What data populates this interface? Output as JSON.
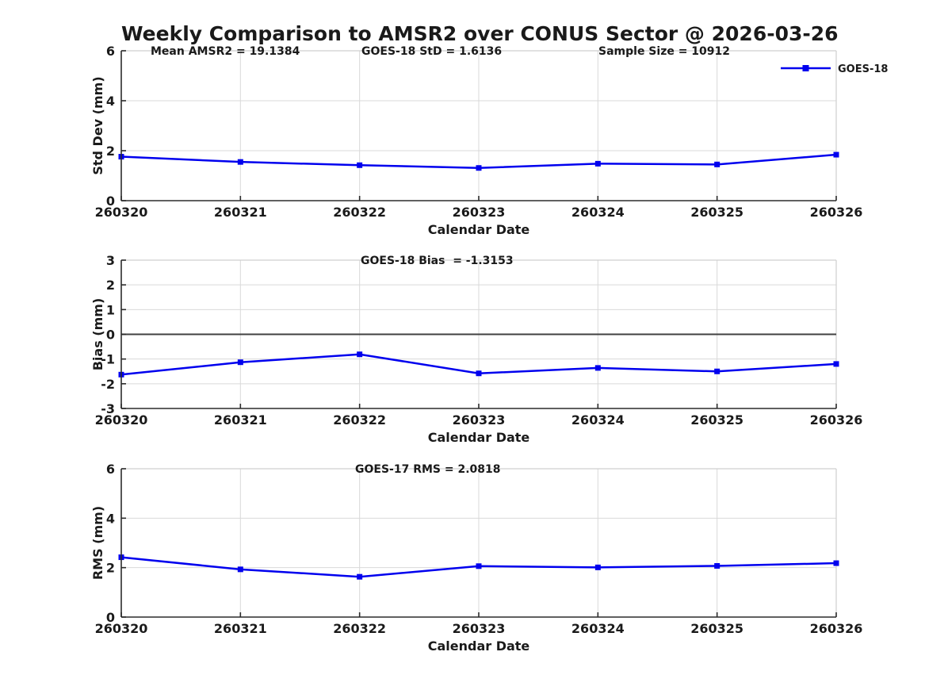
{
  "title": "Weekly Comparison to AMSR2 over CONUS Sector @ 2026-03-26",
  "colors": {
    "series": "#0000EE",
    "grid": "#d9d9d9",
    "box_light": "#cfcfcf",
    "axis": "#2b2b2b",
    "text": "#1a1a1a",
    "zero_line": "#404040",
    "background": "#ffffff"
  },
  "chart_data": [
    {
      "type": "line",
      "panel": "std-dev",
      "categories": [
        "260320",
        "260321",
        "260322",
        "260323",
        "260324",
        "260325",
        "260326"
      ],
      "series": [
        {
          "name": "GOES-18",
          "values": [
            1.76,
            1.55,
            1.42,
            1.31,
            1.48,
            1.45,
            1.84
          ]
        }
      ],
      "xlabel": "Calendar Date",
      "ylabel": "Std Dev (mm)",
      "ylim": [
        0,
        6
      ],
      "yticks": [
        0,
        2,
        4,
        6
      ],
      "grid": true,
      "zero_line": false,
      "legend": {
        "label": "GOES-18",
        "position": "top-right"
      },
      "annotations": [
        {
          "text": "Mean AMSR2 = 19.1384"
        },
        {
          "text": "GOES-18 StD = 1.6136"
        },
        {
          "text": "Sample Size = 10912"
        }
      ]
    },
    {
      "type": "line",
      "panel": "bias",
      "categories": [
        "260320",
        "260321",
        "260322",
        "260323",
        "260324",
        "260325",
        "260326"
      ],
      "series": [
        {
          "name": "GOES-18",
          "values": [
            -1.63,
            -1.13,
            -0.81,
            -1.58,
            -1.36,
            -1.5,
            -1.2
          ]
        }
      ],
      "xlabel": "Calendar Date",
      "ylabel": "Bias (mm)",
      "ylim": [
        -3,
        3
      ],
      "yticks": [
        -3,
        -2,
        -1,
        0,
        1,
        2,
        3
      ],
      "grid": true,
      "zero_line": true,
      "legend": null,
      "annotations": [
        {
          "text": "GOES-18 Bias  = -1.3153"
        }
      ]
    },
    {
      "type": "line",
      "panel": "rms",
      "categories": [
        "260320",
        "260321",
        "260322",
        "260323",
        "260324",
        "260325",
        "260326"
      ],
      "series": [
        {
          "name": "GOES-17",
          "values": [
            2.42,
            1.93,
            1.63,
            2.06,
            2.01,
            2.07,
            2.18
          ]
        }
      ],
      "xlabel": "Calendar Date",
      "ylabel": "RMS (mm)",
      "ylim": [
        0,
        6
      ],
      "yticks": [
        0,
        2,
        4,
        6
      ],
      "grid": true,
      "zero_line": false,
      "legend": null,
      "annotations": [
        {
          "text": "GOES-17 RMS = 2.0818"
        }
      ]
    }
  ]
}
